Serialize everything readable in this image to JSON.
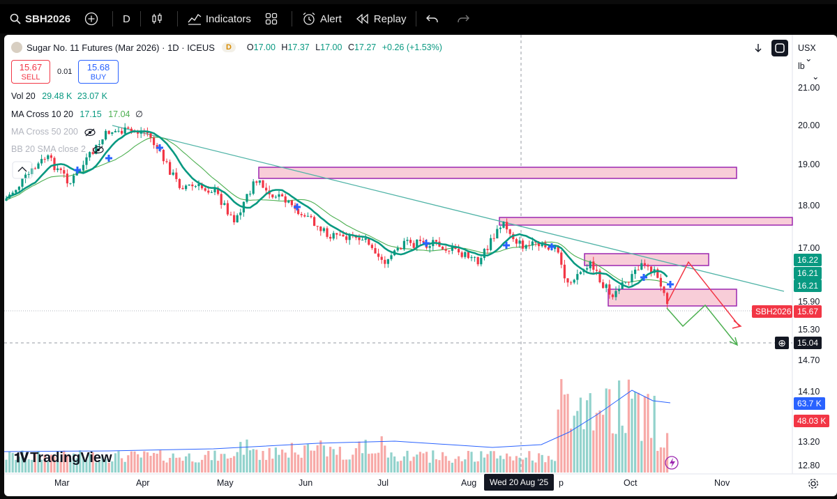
{
  "toolbar": {
    "symbol": "SBH2026",
    "interval": "D",
    "indicators": "Indicators",
    "alert": "Alert",
    "replay": "Replay"
  },
  "legend": {
    "title": "Sugar No. 11 Futures (Mar 2026) · 1D · ICEUS",
    "exchange_badge": "D",
    "o_label": "O",
    "o": "17.00",
    "h_label": "H",
    "h": "17.37",
    "l_label": "L",
    "l": "17.00",
    "c_label": "C",
    "c": "17.27",
    "change": "+0.26 (+1.53%)"
  },
  "trade": {
    "sell_price": "15.67",
    "sell_label": "SELL",
    "spread": "0.01",
    "buy_price": "15.68",
    "buy_label": "BUY"
  },
  "indicators": {
    "vol_label": "Vol 20",
    "vol_v1": "29.48 K",
    "vol_v2": "23.07 K",
    "ma1_label": "MA Cross 10 20",
    "ma1_v1": "17.15",
    "ma1_v2": "17.04",
    "ma1_v3": "∅",
    "ma2_label": "MA Cross 50 200",
    "bb_label": "BB 20 SMA close 2"
  },
  "price_axis": {
    "currency": "USX",
    "unit": "lb",
    "ticks": [
      "21.00",
      "20.00",
      "19.00",
      "18.00",
      "17.00",
      "15.90",
      "15.30",
      "14.70",
      "14.10",
      "13.20",
      "12.80"
    ],
    "tags": {
      "t1": "16.22",
      "t2": "16.21",
      "t3": "16.21",
      "symbol": "SBH2026",
      "last": "15.67",
      "crosshair": "15.04",
      "vol1": "63.7 K",
      "vol2": "48.03 K"
    }
  },
  "time_axis": {
    "labels": [
      "Mar",
      "Apr",
      "May",
      "Jun",
      "Jul",
      "Aug",
      "Oct",
      "Nov"
    ],
    "crosshair": "Wed 20 Aug '25",
    "sep_label": "p"
  },
  "logo": "TradingView",
  "colors": {
    "up": "#089981",
    "down": "#f23645",
    "zone": "#f8cdd8",
    "zone_border": "#9c27b0",
    "trend": "#4fb3a6"
  }
}
